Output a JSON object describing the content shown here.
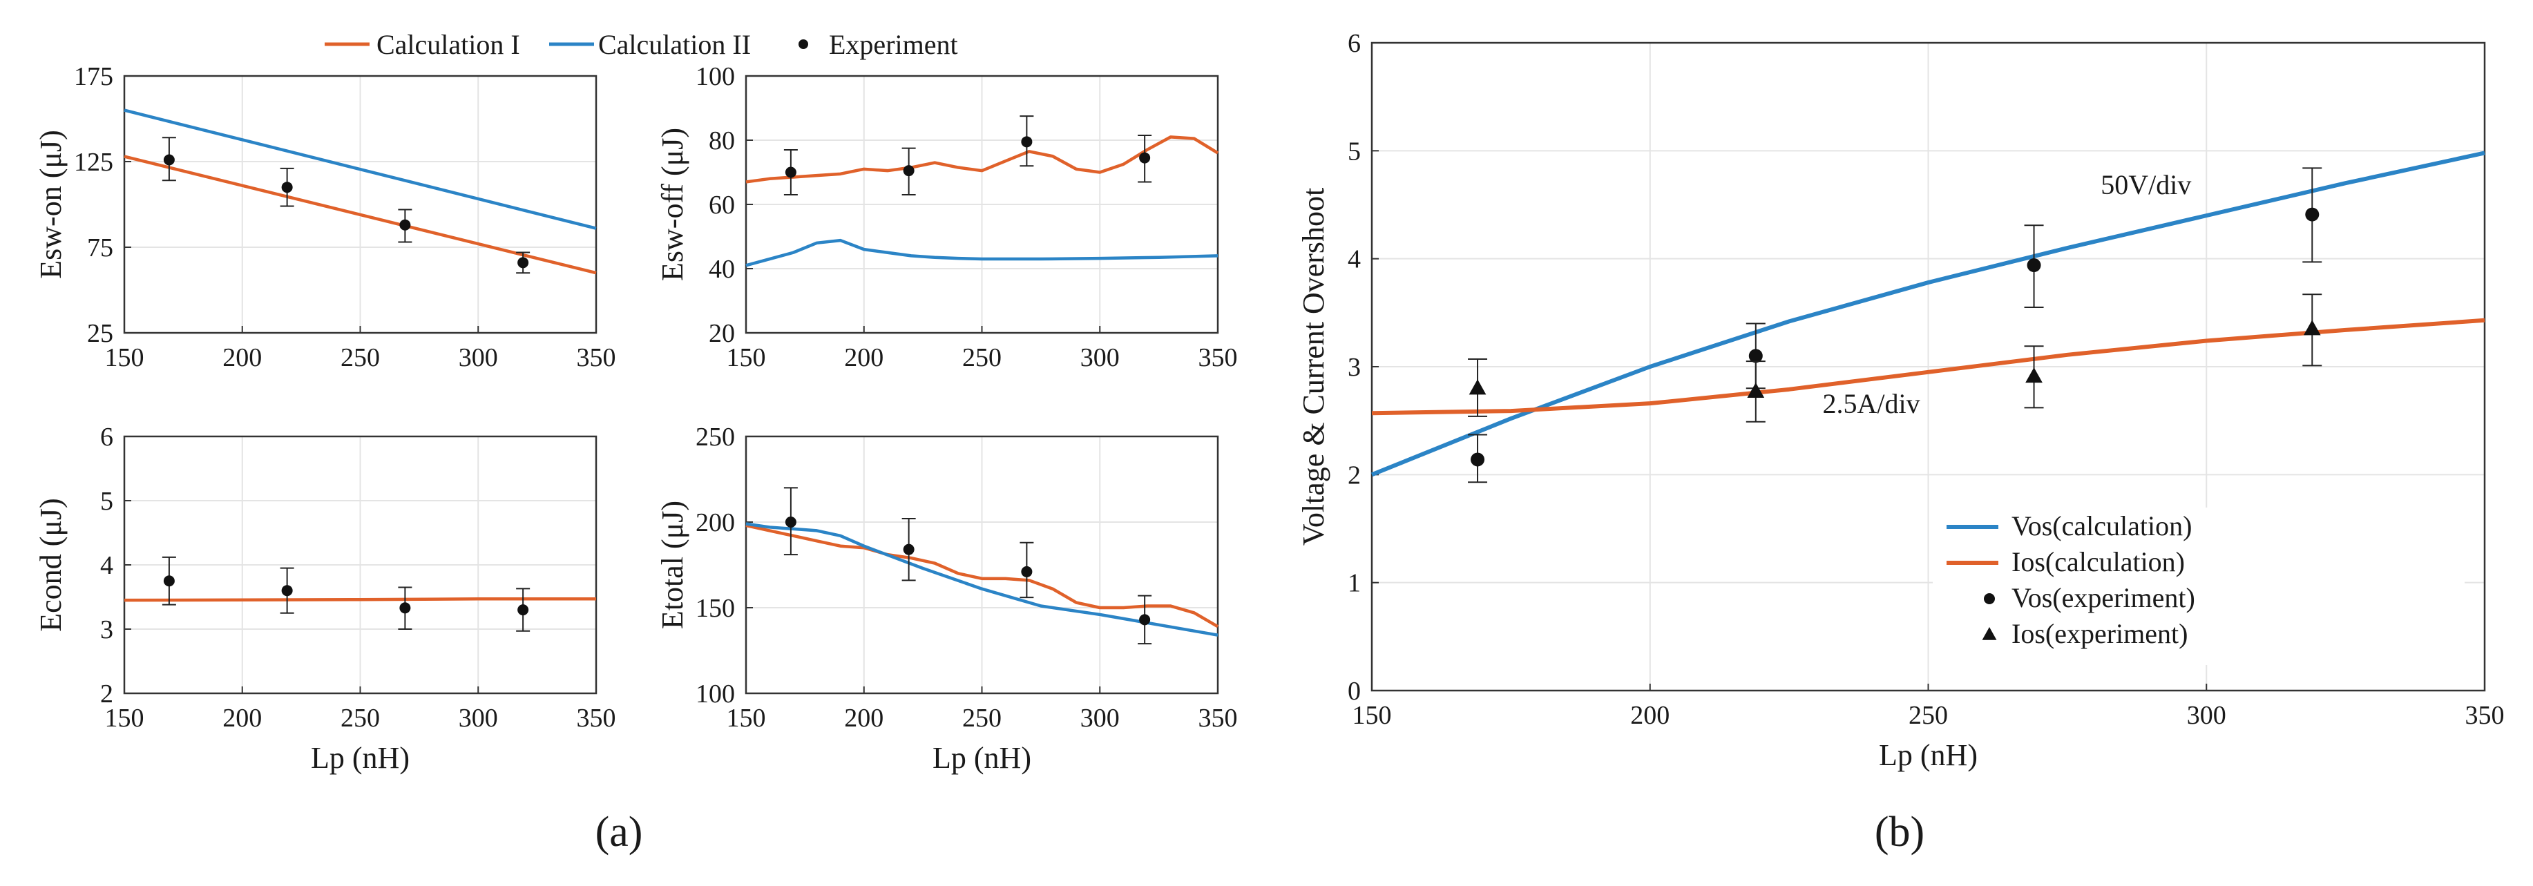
{
  "colors": {
    "orange": "#E0612A",
    "blue": "#2B84C6",
    "marker": "#111111",
    "grid": "#e4e4e4",
    "axis": "#333333"
  },
  "figure": {
    "panel_a_label": "(a)",
    "panel_b_label": "(b)",
    "legend_a": [
      {
        "label": "Calculation I",
        "kind": "line",
        "color": "orange"
      },
      {
        "label": "Calculation II",
        "kind": "line",
        "color": "blue"
      },
      {
        "label": "Experiment",
        "kind": "dot"
      }
    ]
  },
  "chart_data": [
    {
      "id": "esw_on",
      "type": "line",
      "title": "",
      "xlabel": "",
      "ylabel": "Esw-on (μJ)",
      "xlim": [
        150,
        350
      ],
      "ylim": [
        25,
        175
      ],
      "xticks": [
        150,
        200,
        250,
        300,
        350
      ],
      "yticks": [
        25,
        75,
        125,
        175
      ],
      "series": [
        {
          "name": "Calculation I",
          "color": "orange",
          "x": [
            150,
            350
          ],
          "y": [
            128,
            60
          ]
        },
        {
          "name": "Calculation II",
          "color": "blue",
          "x": [
            150,
            350
          ],
          "y": [
            155,
            86
          ]
        }
      ],
      "experiment": {
        "name": "Experiment",
        "marker": "dot",
        "x": [
          169,
          219,
          269,
          319
        ],
        "y": [
          126,
          110,
          88,
          66
        ],
        "err": [
          [
            114,
            139
          ],
          [
            99,
            121
          ],
          [
            78,
            97
          ],
          [
            60,
            72
          ]
        ]
      }
    },
    {
      "id": "esw_off",
      "type": "line",
      "title": "",
      "xlabel": "",
      "ylabel": "Esw-off (μJ)",
      "xlim": [
        150,
        350
      ],
      "ylim": [
        20,
        100
      ],
      "xticks": [
        150,
        200,
        250,
        300,
        350
      ],
      "yticks": [
        20,
        40,
        60,
        80,
        100
      ],
      "series": [
        {
          "name": "Calculation I",
          "color": "orange",
          "x": [
            150,
            160,
            170,
            180,
            190,
            200,
            210,
            220,
            230,
            240,
            250,
            260,
            270,
            280,
            290,
            300,
            310,
            320,
            330,
            340,
            350
          ],
          "y": [
            67,
            68,
            68.5,
            69,
            69.5,
            71,
            70.5,
            71.5,
            73,
            71.5,
            70.5,
            73.5,
            76.5,
            75,
            71,
            70,
            72.5,
            77,
            81,
            80.5,
            76
          ]
        },
        {
          "name": "Calculation II",
          "color": "blue",
          "x": [
            150,
            160,
            170,
            180,
            190,
            200,
            210,
            220,
            230,
            240,
            250,
            275,
            300,
            325,
            350
          ],
          "y": [
            41,
            43,
            45,
            48,
            48.8,
            46,
            45,
            44,
            43.5,
            43.2,
            43,
            43,
            43.2,
            43.5,
            44
          ]
        }
      ],
      "experiment": {
        "name": "Experiment",
        "marker": "dot",
        "x": [
          169,
          219,
          269,
          319
        ],
        "y": [
          70,
          70.5,
          79.5,
          74.5
        ],
        "err": [
          [
            63,
            77
          ],
          [
            63,
            77.5
          ],
          [
            72,
            87.5
          ],
          [
            67,
            81.5
          ]
        ]
      }
    },
    {
      "id": "econd",
      "type": "line",
      "title": "",
      "xlabel": "Lp (nH)",
      "ylabel": "Econd (μJ)",
      "xlim": [
        150,
        350
      ],
      "ylim": [
        2,
        6
      ],
      "xticks": [
        150,
        200,
        250,
        300,
        350
      ],
      "yticks": [
        2,
        3,
        4,
        5,
        6
      ],
      "series": [
        {
          "name": "Calculation I",
          "color": "orange",
          "x": [
            150,
            250,
            300,
            350
          ],
          "y": [
            3.45,
            3.46,
            3.47,
            3.47
          ]
        }
      ],
      "experiment": {
        "name": "Experiment",
        "marker": "dot",
        "x": [
          169,
          219,
          269,
          319
        ],
        "y": [
          3.75,
          3.6,
          3.33,
          3.3
        ],
        "err": [
          [
            3.38,
            4.12
          ],
          [
            3.25,
            3.95
          ],
          [
            3.0,
            3.65
          ],
          [
            2.97,
            3.63
          ]
        ]
      }
    },
    {
      "id": "etotal",
      "type": "line",
      "title": "",
      "xlabel": "Lp (nH)",
      "ylabel": "Etotal (μJ)",
      "xlim": [
        150,
        350
      ],
      "ylim": [
        100,
        250
      ],
      "xticks": [
        150,
        200,
        250,
        300,
        350
      ],
      "yticks": [
        100,
        150,
        200,
        250
      ],
      "series": [
        {
          "name": "Calculation I",
          "color": "orange",
          "x": [
            150,
            160,
            170,
            180,
            190,
            200,
            210,
            220,
            230,
            240,
            250,
            260,
            270,
            280,
            290,
            300,
            310,
            320,
            330,
            340,
            350
          ],
          "y": [
            198,
            195,
            192,
            189,
            186,
            185,
            181,
            179,
            176,
            170,
            167,
            167,
            166,
            161,
            153,
            150,
            150,
            151,
            151,
            147,
            139
          ]
        },
        {
          "name": "Calculation II",
          "color": "blue",
          "x": [
            150,
            160,
            170,
            180,
            190,
            200,
            225,
            250,
            275,
            300,
            325,
            350
          ],
          "y": [
            199,
            197,
            196,
            195,
            192,
            186,
            173,
            161,
            151,
            146,
            140,
            134
          ]
        }
      ],
      "experiment": {
        "name": "Experiment",
        "marker": "dot",
        "x": [
          169,
          219,
          269,
          319
        ],
        "y": [
          200,
          184,
          171,
          143
        ],
        "err": [
          [
            181,
            220
          ],
          [
            166,
            202
          ],
          [
            156,
            188
          ],
          [
            129,
            157
          ]
        ]
      }
    },
    {
      "id": "overshoot",
      "type": "line",
      "title": "",
      "xlabel": "Lp (nH)",
      "ylabel": "Voltage & Current Overshoot",
      "xlim": [
        150,
        350
      ],
      "ylim": [
        0,
        6
      ],
      "xticks": [
        150,
        200,
        250,
        300,
        350
      ],
      "yticks": [
        0,
        1,
        2,
        3,
        4,
        5,
        6
      ],
      "series": [
        {
          "name": "Vos(calculation)",
          "color": "blue",
          "x": [
            150,
            175,
            200,
            225,
            250,
            275,
            300,
            325,
            350
          ],
          "y": [
            2.0,
            2.52,
            3.0,
            3.42,
            3.78,
            4.1,
            4.4,
            4.7,
            4.98
          ]
        },
        {
          "name": "Ios(calculation)",
          "color": "orange",
          "x": [
            150,
            175,
            200,
            225,
            250,
            275,
            300,
            325,
            350
          ],
          "y": [
            2.57,
            2.59,
            2.66,
            2.79,
            2.95,
            3.11,
            3.24,
            3.34,
            3.43
          ]
        }
      ],
      "markers": [
        {
          "name": "Vos(experiment)",
          "marker": "dot",
          "x": [
            169,
            219,
            269,
            319
          ],
          "y": [
            2.14,
            3.1,
            3.94,
            4.41
          ],
          "err": [
            [
              1.93,
              2.37
            ],
            [
              2.8,
              3.4
            ],
            [
              3.55,
              4.31
            ],
            [
              3.97,
              4.84
            ]
          ]
        },
        {
          "name": "Ios(experiment)",
          "marker": "triangle",
          "x": [
            169,
            219,
            269,
            319
          ],
          "y": [
            2.8,
            2.77,
            2.91,
            3.35
          ],
          "err": [
            [
              2.54,
              3.07
            ],
            [
              2.49,
              3.05
            ],
            [
              2.62,
              3.19
            ],
            [
              3.01,
              3.67
            ]
          ]
        }
      ],
      "legend": [
        "Vos(calculation)",
        "Ios(calculation)",
        "Vos(experiment)",
        "Ios(experiment)"
      ],
      "legend_position": "bottom-right",
      "annotations": [
        {
          "text": "50V/div",
          "x": 281,
          "y": 4.6
        },
        {
          "text": "2.5A/div",
          "x": 231,
          "y": 2.57
        }
      ]
    }
  ]
}
